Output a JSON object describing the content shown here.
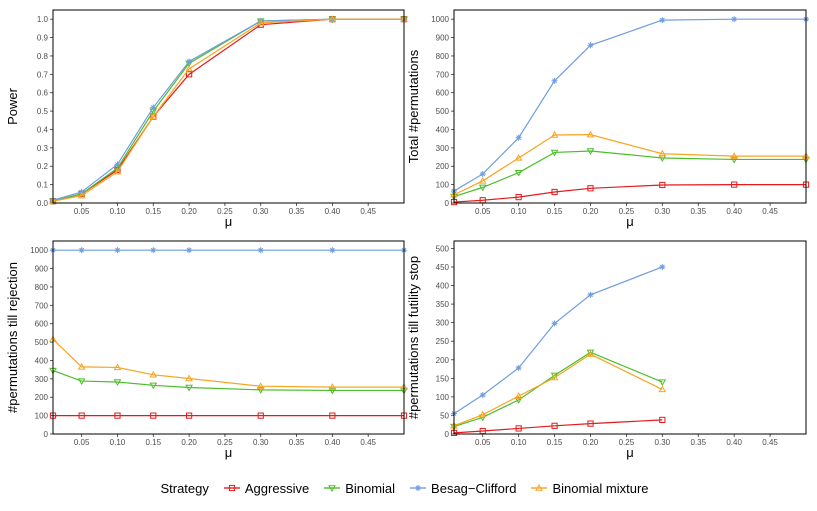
{
  "chart_data": [
    {
      "type": "line",
      "ylabel": "Power",
      "xlabel": "μ",
      "xlim": [
        0.01,
        0.5
      ],
      "ylim": [
        0,
        1.05
      ],
      "xticks": [
        0.05,
        0.1,
        0.15,
        0.2,
        0.25,
        0.3,
        0.35,
        0.4,
        0.45
      ],
      "xtick_labels": [
        "0.05",
        "0.10",
        "0.15",
        "0.20",
        "0.25",
        "0.30",
        "0.35",
        "0.40",
        "0.45"
      ],
      "yticks": [
        0,
        0.1,
        0.2,
        0.3,
        0.4,
        0.5,
        0.6,
        0.7,
        0.8,
        0.9,
        1.0
      ],
      "ytick_labels": [
        "0.0",
        "0.1",
        "0.2",
        "0.3",
        "0.4",
        "0.5",
        "0.6",
        "0.7",
        "0.8",
        "0.9",
        "1.0"
      ],
      "x": [
        0.01,
        0.05,
        0.1,
        0.15,
        0.2,
        0.3,
        0.4,
        0.5
      ],
      "series": [
        {
          "name": "Aggressive",
          "values": [
            0.01,
            0.05,
            0.18,
            0.47,
            0.7,
            0.97,
            1.0,
            1.0
          ]
        },
        {
          "name": "Binomial",
          "values": [
            0.01,
            0.05,
            0.19,
            0.5,
            0.76,
            0.99,
            1.0,
            1.0
          ]
        },
        {
          "name": "Besag-Clifford",
          "values": [
            0.015,
            0.06,
            0.21,
            0.52,
            0.77,
            0.99,
            1.0,
            1.0
          ]
        },
        {
          "name": "Binomial mixture",
          "values": [
            0.01,
            0.04,
            0.17,
            0.47,
            0.73,
            0.98,
            1.0,
            1.0
          ]
        }
      ]
    },
    {
      "type": "line",
      "ylabel": "Total #permutations",
      "xlabel": "μ",
      "xlim": [
        0.01,
        0.5
      ],
      "ylim": [
        0,
        1050
      ],
      "xticks": [
        0.05,
        0.1,
        0.15,
        0.2,
        0.25,
        0.3,
        0.35,
        0.4,
        0.45
      ],
      "xtick_labels": [
        "0.05",
        "0.10",
        "0.15",
        "0.20",
        "0.25",
        "0.30",
        "0.35",
        "0.40",
        "0.45"
      ],
      "yticks": [
        0,
        100,
        200,
        300,
        400,
        500,
        600,
        700,
        800,
        900,
        1000
      ],
      "ytick_labels": [
        "0",
        "100",
        "200",
        "300",
        "400",
        "500",
        "600",
        "700",
        "800",
        "900",
        "1000"
      ],
      "x": [
        0.01,
        0.05,
        0.1,
        0.15,
        0.2,
        0.3,
        0.4,
        0.5
      ],
      "series": [
        {
          "name": "Aggressive",
          "values": [
            5,
            15,
            32,
            60,
            80,
            98,
            100,
            100
          ]
        },
        {
          "name": "Binomial",
          "values": [
            35,
            85,
            165,
            275,
            283,
            245,
            237,
            237
          ]
        },
        {
          "name": "Besag-Clifford",
          "values": [
            65,
            158,
            355,
            665,
            858,
            995,
            1000,
            1000
          ]
        },
        {
          "name": "Binomial mixture",
          "values": [
            45,
            120,
            245,
            370,
            372,
            268,
            255,
            255
          ]
        }
      ]
    },
    {
      "type": "line",
      "ylabel": "#permutations till rejection",
      "xlabel": "μ",
      "xlim": [
        0.01,
        0.5
      ],
      "ylim": [
        0,
        1050
      ],
      "xticks": [
        0.05,
        0.1,
        0.15,
        0.2,
        0.25,
        0.3,
        0.35,
        0.4,
        0.45
      ],
      "xtick_labels": [
        "0.05",
        "0.10",
        "0.15",
        "0.20",
        "0.25",
        "0.30",
        "0.35",
        "0.40",
        "0.45"
      ],
      "yticks": [
        0,
        100,
        200,
        300,
        400,
        500,
        600,
        700,
        800,
        900,
        1000
      ],
      "ytick_labels": [
        "0",
        "100",
        "200",
        "300",
        "400",
        "500",
        "600",
        "700",
        "800",
        "900",
        "1000"
      ],
      "x": [
        0.01,
        0.05,
        0.1,
        0.15,
        0.2,
        0.3,
        0.4,
        0.5
      ],
      "series": [
        {
          "name": "Aggressive",
          "values": [
            100,
            100,
            100,
            100,
            100,
            100,
            100,
            100
          ]
        },
        {
          "name": "Binomial",
          "values": [
            345,
            288,
            283,
            265,
            253,
            240,
            237,
            237
          ]
        },
        {
          "name": "Besag-Clifford",
          "values": [
            1000,
            1000,
            1000,
            1000,
            1000,
            1000,
            1000,
            1000
          ]
        },
        {
          "name": "Binomial mixture",
          "values": [
            515,
            365,
            362,
            322,
            302,
            260,
            255,
            255
          ]
        }
      ]
    },
    {
      "type": "line",
      "ylabel": "#permutations till futility stop",
      "xlabel": "μ",
      "xlim": [
        0.01,
        0.5
      ],
      "ylim": [
        0,
        520
      ],
      "xticks": [
        0.05,
        0.1,
        0.15,
        0.2,
        0.25,
        0.3,
        0.35,
        0.4,
        0.45
      ],
      "xtick_labels": [
        "0.05",
        "0.10",
        "0.15",
        "0.20",
        "0.25",
        "0.30",
        "0.35",
        "0.40",
        "0.45"
      ],
      "yticks": [
        0,
        50,
        100,
        150,
        200,
        250,
        300,
        350,
        400,
        450,
        500
      ],
      "ytick_labels": [
        "0",
        "50",
        "100",
        "150",
        "200",
        "250",
        "300",
        "350",
        "400",
        "450",
        "500"
      ],
      "x": [
        0.01,
        0.05,
        0.1,
        0.15,
        0.2,
        0.3
      ],
      "series": [
        {
          "name": "Aggressive",
          "values": [
            3,
            8,
            15,
            22,
            28,
            38
          ]
        },
        {
          "name": "Binomial",
          "values": [
            20,
            45,
            92,
            158,
            220,
            140
          ]
        },
        {
          "name": "Besag-Clifford",
          "values": [
            55,
            105,
            178,
            298,
            375,
            450
          ]
        },
        {
          "name": "Binomial mixture",
          "values": [
            22,
            52,
            102,
            152,
            215,
            120
          ]
        }
      ]
    }
  ],
  "legend": {
    "title": "Strategy",
    "items": [
      {
        "label": "Aggressive",
        "color": "#e41a1c",
        "marker": "square"
      },
      {
        "label": "Binomial",
        "color": "#4dbd2b",
        "marker": "triangle-down"
      },
      {
        "label": "Besag−Clifford",
        "color": "#6f9ee0",
        "marker": "asterisk"
      },
      {
        "label": "Binomial mixture",
        "color": "#f7a420",
        "marker": "triangle-up"
      }
    ]
  },
  "colors": [
    "#e41a1c",
    "#4dbd2b",
    "#6f9ee0",
    "#f7a420"
  ],
  "markers": [
    "square",
    "triangle-down",
    "asterisk",
    "triangle-up"
  ]
}
